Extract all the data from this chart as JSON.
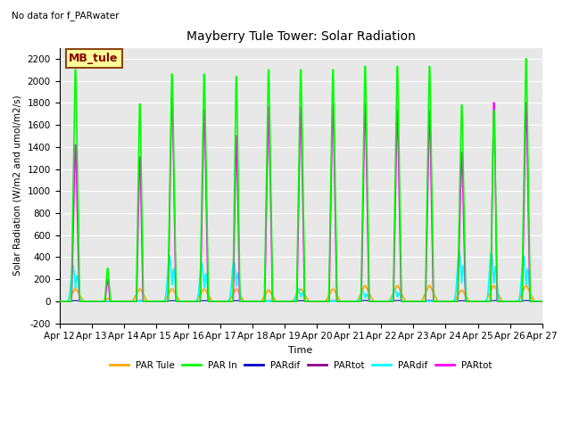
{
  "title": "Mayberry Tule Tower: Solar Radiation",
  "subtitle": "No data for f_PARwater",
  "xlabel": "Time",
  "ylabel": "Solar Radiation (W/m2 and umol/m2/s)",
  "ylim": [
    -200,
    2300
  ],
  "yticks": [
    -200,
    0,
    200,
    400,
    600,
    800,
    1000,
    1200,
    1400,
    1600,
    1800,
    2000,
    2200
  ],
  "xticklabels": [
    "Apr 12",
    "Apr 13",
    "Apr 14",
    "Apr 15",
    "Apr 16",
    "Apr 17",
    "Apr 18",
    "Apr 19",
    "Apr 20",
    "Apr 21",
    "Apr 22",
    "Apr 23",
    "Apr 24",
    "Apr 25",
    "Apr 26",
    "Apr 27"
  ],
  "bg_color": "#E8E8E8",
  "box_label": "MB_tule",
  "box_facecolor": "#FFFF99",
  "box_edgecolor": "#8B4513",
  "box_textcolor": "#8B0000",
  "n_days": 15,
  "peak_heights_green": [
    2100,
    300,
    1790,
    2060,
    2060,
    2040,
    2100,
    2100,
    2100,
    2130,
    2130,
    2130,
    1780,
    1730,
    2200
  ],
  "peak_heights_magenta": [
    1420,
    200,
    1310,
    1900,
    1740,
    1500,
    1760,
    1760,
    1790,
    1790,
    1730,
    1730,
    1350,
    1800,
    1800
  ],
  "peak_heights_cyan": [
    470,
    0,
    0,
    590,
    500,
    520,
    0,
    160,
    0,
    130,
    150,
    0,
    650,
    630,
    590
  ],
  "peak_heights_orange": [
    110,
    25,
    110,
    110,
    110,
    110,
    100,
    110,
    110,
    140,
    140,
    140,
    100,
    140,
    140
  ],
  "day_widths_green": [
    0.12,
    0.08,
    0.1,
    0.12,
    0.12,
    0.1,
    0.12,
    0.12,
    0.12,
    0.12,
    0.12,
    0.12,
    0.12,
    0.1,
    0.12
  ],
  "day_widths_magenta": [
    0.11,
    0.07,
    0.09,
    0.11,
    0.11,
    0.09,
    0.11,
    0.11,
    0.11,
    0.11,
    0.11,
    0.11,
    0.11,
    0.09,
    0.11
  ],
  "day_widths_orange": [
    0.22,
    0.1,
    0.2,
    0.22,
    0.22,
    0.2,
    0.2,
    0.22,
    0.2,
    0.22,
    0.22,
    0.22,
    0.2,
    0.22,
    0.22
  ]
}
